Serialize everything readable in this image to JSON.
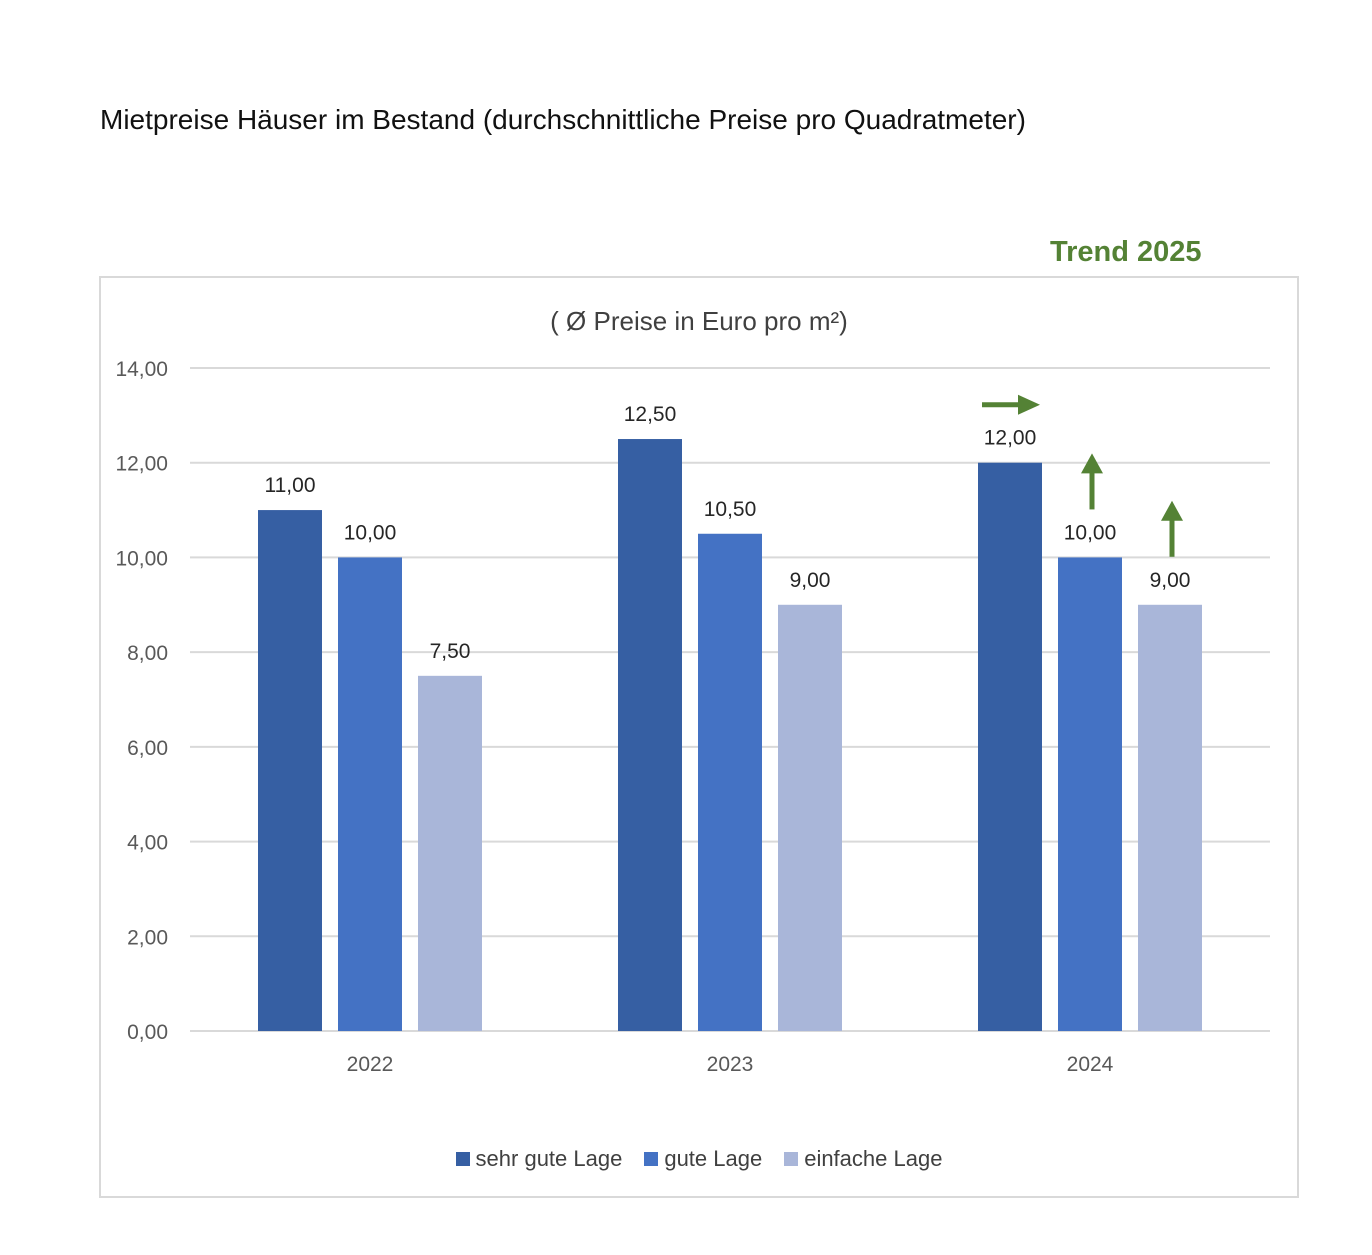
{
  "page_title": "Mietpreise Häuser im Bestand (durchschnittliche Preise pro Quadratmeter)",
  "trend_label": "Trend 2025",
  "colors": {
    "trend": "#548235",
    "grid": "#d9d9d9",
    "axis_text": "#595959"
  },
  "chart_data": {
    "type": "bar",
    "title": "( Ø Preise in Euro pro m²)",
    "xlabel": "",
    "ylabel": "",
    "categories": [
      "2022",
      "2023",
      "2024"
    ],
    "series": [
      {
        "name": "sehr gute Lage",
        "color": "#365fa3",
        "values": [
          11.0,
          12.5,
          12.0
        ]
      },
      {
        "name": "gute Lage",
        "color": "#4472c4",
        "values": [
          10.0,
          10.5,
          10.0
        ]
      },
      {
        "name": "einfache Lage",
        "color": "#a9b6d9",
        "values": [
          7.5,
          9.0,
          9.0
        ]
      }
    ],
    "data_labels": [
      [
        "11,00",
        "12,50",
        "12,00"
      ],
      [
        "10,00",
        "10,50",
        "10,00"
      ],
      [
        "7,50",
        "9,00",
        "9,00"
      ]
    ],
    "ylim": [
      0,
      14
    ],
    "yticks": [
      "0,00",
      "2,00",
      "4,00",
      "6,00",
      "8,00",
      "10,00",
      "12,00",
      "14,00"
    ],
    "grid": true,
    "legend_position": "bottom",
    "trend_arrows": [
      {
        "category": "2024",
        "series": "sehr gute Lage",
        "direction": "right"
      },
      {
        "category": "2024",
        "series": "gute Lage",
        "direction": "up"
      },
      {
        "category": "2024",
        "series": "einfache Lage",
        "direction": "up"
      }
    ]
  }
}
